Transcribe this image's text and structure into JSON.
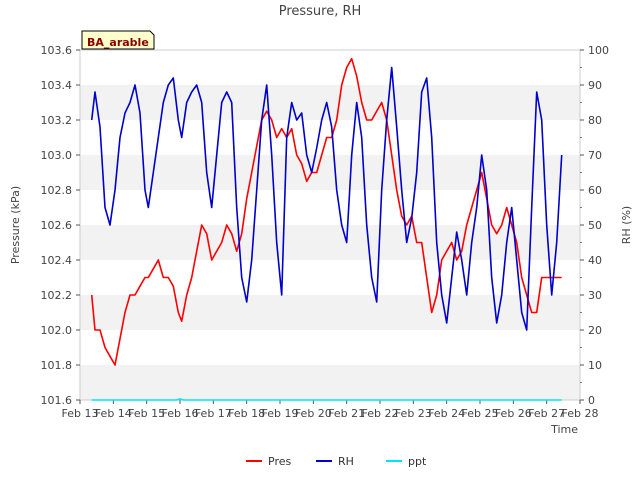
{
  "chart_data": {
    "type": "line",
    "title": "Pressure, RH",
    "site_label": "BA_arable",
    "xlabel": "Time",
    "ylabel_left": "Pressure (kPa)",
    "ylabel_right": "RH (%)",
    "x_ticks": [
      "Feb 13",
      "Feb 14",
      "Feb 15",
      "Feb 16",
      "Feb 17",
      "Feb 18",
      "Feb 19",
      "Feb 20",
      "Feb 21",
      "Feb 22",
      "Feb 23",
      "Feb 24",
      "Feb 25",
      "Feb 26",
      "Feb 27",
      "Feb 28"
    ],
    "xlim_days": [
      13,
      28
    ],
    "ylim_left": [
      101.6,
      103.6
    ],
    "y_ticks_left": [
      "101.6",
      "101.8",
      "102.0",
      "102.2",
      "102.4",
      "102.6",
      "102.8",
      "103.0",
      "103.2",
      "103.4",
      "103.6"
    ],
    "ylim_right": [
      0,
      100
    ],
    "y_ticks_right": [
      "0",
      "10",
      "20",
      "30",
      "40",
      "50",
      "60",
      "70",
      "80",
      "90",
      "100"
    ],
    "grid": "horizontal bands",
    "legend_position": "bottom-center",
    "series": [
      {
        "name": "Pres",
        "axis": "left",
        "color": "#ff0000",
        "x": [
          13.35,
          13.45,
          13.6,
          13.75,
          13.9,
          14.05,
          14.2,
          14.35,
          14.5,
          14.65,
          14.8,
          14.95,
          15.05,
          15.2,
          15.35,
          15.5,
          15.65,
          15.8,
          15.95,
          16.05,
          16.2,
          16.35,
          16.5,
          16.65,
          16.8,
          16.95,
          17.1,
          17.25,
          17.4,
          17.55,
          17.7,
          17.85,
          18.0,
          18.15,
          18.3,
          18.45,
          18.6,
          18.75,
          18.9,
          19.05,
          19.2,
          19.35,
          19.5,
          19.65,
          19.8,
          19.95,
          20.1,
          20.25,
          20.4,
          20.55,
          20.7,
          20.85,
          21.0,
          21.15,
          21.3,
          21.45,
          21.6,
          21.75,
          21.9,
          22.05,
          22.2,
          22.35,
          22.5,
          22.65,
          22.8,
          22.95,
          23.1,
          23.25,
          23.4,
          23.55,
          23.7,
          23.85,
          24.0,
          24.15,
          24.3,
          24.45,
          24.6,
          24.75,
          24.9,
          25.05,
          25.2,
          25.35,
          25.5,
          25.65,
          25.8,
          25.95,
          26.1,
          26.25,
          26.4,
          26.55,
          26.7,
          26.85,
          27.0,
          27.15,
          27.3,
          27.45
        ],
        "values": [
          102.2,
          102.0,
          102.0,
          101.9,
          101.85,
          101.8,
          101.95,
          102.1,
          102.2,
          102.2,
          102.25,
          102.3,
          102.3,
          102.35,
          102.4,
          102.3,
          102.3,
          102.25,
          102.1,
          102.05,
          102.2,
          102.3,
          102.45,
          102.6,
          102.55,
          102.4,
          102.45,
          102.5,
          102.6,
          102.55,
          102.45,
          102.55,
          102.75,
          102.9,
          103.05,
          103.2,
          103.25,
          103.2,
          103.1,
          103.15,
          103.1,
          103.15,
          103.0,
          102.95,
          102.85,
          102.9,
          102.9,
          103.0,
          103.1,
          103.1,
          103.2,
          103.4,
          103.5,
          103.55,
          103.45,
          103.3,
          103.2,
          103.2,
          103.25,
          103.3,
          103.2,
          103.0,
          102.8,
          102.65,
          102.6,
          102.65,
          102.5,
          102.5,
          102.3,
          102.1,
          102.2,
          102.4,
          102.45,
          102.5,
          102.4,
          102.45,
          102.6,
          102.7,
          102.8,
          102.9,
          102.75,
          102.6,
          102.55,
          102.6,
          102.7,
          102.6,
          102.5,
          102.3,
          102.2,
          102.1,
          102.1,
          102.3,
          102.3,
          102.3,
          102.3,
          102.3
        ]
      },
      {
        "name": "RH",
        "axis": "right",
        "color": "#0000cc",
        "x": [
          13.35,
          13.45,
          13.6,
          13.75,
          13.9,
          14.05,
          14.2,
          14.35,
          14.5,
          14.65,
          14.8,
          14.95,
          15.05,
          15.2,
          15.35,
          15.5,
          15.65,
          15.8,
          15.95,
          16.05,
          16.2,
          16.35,
          16.5,
          16.65,
          16.8,
          16.95,
          17.1,
          17.25,
          17.4,
          17.55,
          17.7,
          17.85,
          18.0,
          18.15,
          18.3,
          18.45,
          18.6,
          18.75,
          18.9,
          19.05,
          19.2,
          19.35,
          19.5,
          19.65,
          19.8,
          19.95,
          20.1,
          20.25,
          20.4,
          20.55,
          20.7,
          20.85,
          21.0,
          21.15,
          21.3,
          21.45,
          21.6,
          21.75,
          21.9,
          22.05,
          22.2,
          22.35,
          22.5,
          22.65,
          22.8,
          22.95,
          23.1,
          23.25,
          23.4,
          23.55,
          23.7,
          23.85,
          24.0,
          24.15,
          24.3,
          24.45,
          24.6,
          24.75,
          24.9,
          25.05,
          25.2,
          25.35,
          25.5,
          25.65,
          25.8,
          25.95,
          26.1,
          26.25,
          26.4,
          26.55,
          26.7,
          26.85,
          27.0,
          27.15,
          27.3,
          27.45
        ],
        "values": [
          80,
          88,
          78,
          55,
          50,
          60,
          75,
          82,
          85,
          90,
          82,
          60,
          55,
          65,
          75,
          85,
          90,
          92,
          80,
          75,
          85,
          88,
          90,
          85,
          65,
          55,
          70,
          85,
          88,
          85,
          55,
          35,
          28,
          40,
          60,
          80,
          90,
          70,
          45,
          30,
          75,
          85,
          80,
          82,
          70,
          65,
          72,
          80,
          85,
          78,
          60,
          50,
          45,
          70,
          85,
          75,
          50,
          35,
          28,
          60,
          80,
          95,
          78,
          60,
          45,
          52,
          65,
          88,
          92,
          75,
          45,
          30,
          22,
          35,
          48,
          40,
          30,
          45,
          55,
          70,
          60,
          35,
          22,
          30,
          45,
          55,
          40,
          25,
          20,
          55,
          88,
          80,
          50,
          30,
          45,
          70
        ]
      },
      {
        "name": "ppt",
        "axis": "right",
        "color": "#00e5ff",
        "x": [
          13.35,
          15.9,
          16.0,
          16.1,
          27.45
        ],
        "values": [
          0,
          0,
          0.3,
          0,
          0
        ]
      }
    ]
  }
}
